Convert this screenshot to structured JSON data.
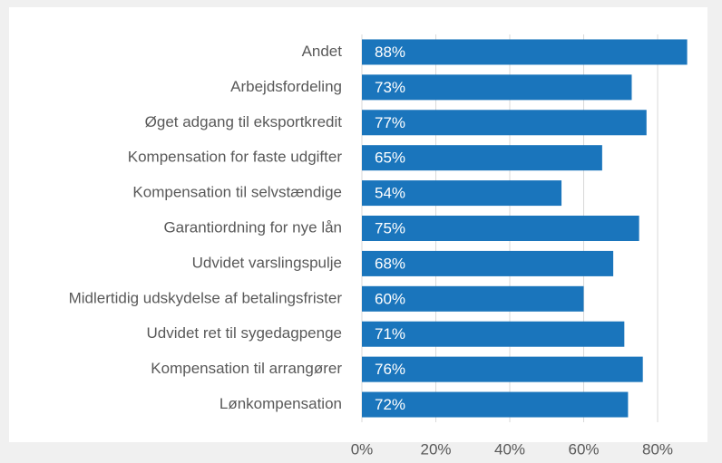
{
  "chart_data": {
    "type": "bar",
    "orientation": "horizontal",
    "categories": [
      "Andet",
      "Arbejdsfordeling",
      "Øget adgang til eksportkredit",
      "Kompensation for faste udgifter",
      "Kompensation til selvstændige",
      "Garantiordning for nye lån",
      "Udvidet varslingspulje",
      "Midlertidig udskydelse af betalingsfrister",
      "Udvidet ret til sygedagpenge",
      "Kompensation til arrangører",
      "Lønkompensation"
    ],
    "values": [
      88,
      73,
      77,
      65,
      54,
      75,
      68,
      60,
      71,
      76,
      72
    ],
    "value_labels": [
      "88%",
      "73%",
      "77%",
      "65%",
      "54%",
      "75%",
      "68%",
      "60%",
      "71%",
      "76%",
      "72%"
    ],
    "color": "#1a75bc",
    "xlim": [
      0,
      90
    ],
    "xticks": [
      {
        "value": 0,
        "label": "0%"
      },
      {
        "value": 20,
        "label": "20%"
      },
      {
        "value": 40,
        "label": "40%"
      },
      {
        "value": 60,
        "label": "60%"
      },
      {
        "value": 80,
        "label": "80%"
      }
    ],
    "grid": true
  }
}
